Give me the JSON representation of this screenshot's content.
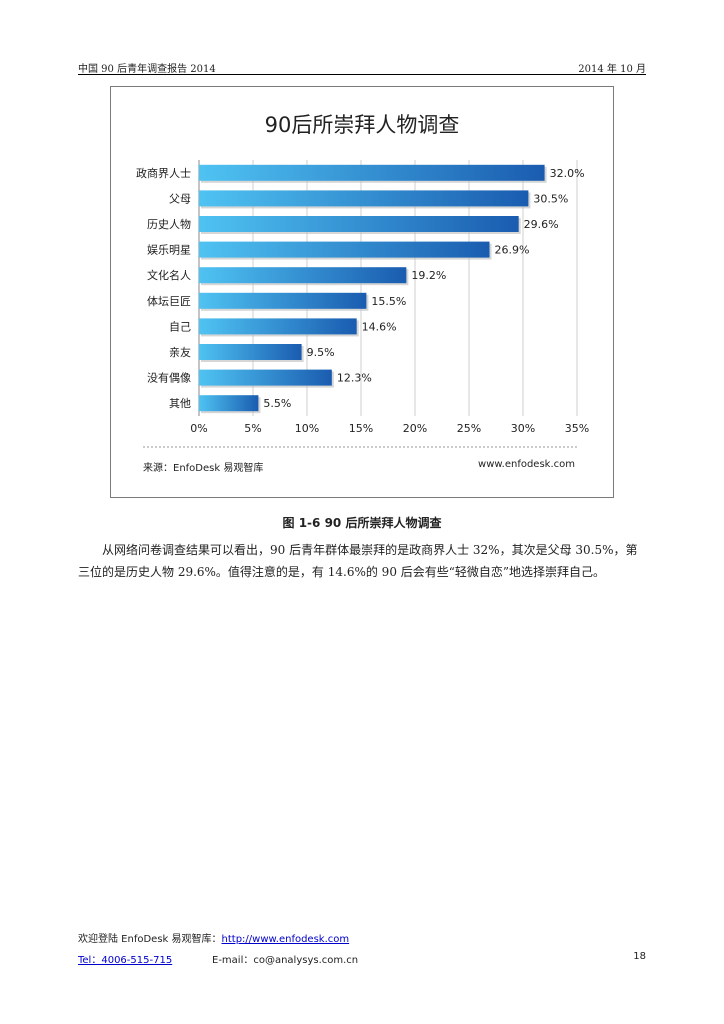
{
  "header": {
    "left": "中国 90 后青年调查报告 2014",
    "right": "2014 年 10 月"
  },
  "chart_data": {
    "type": "bar",
    "orientation": "horizontal",
    "title": "90后所崇拜人物调查",
    "categories": [
      "政商界人士",
      "父母",
      "历史人物",
      "娱乐明星",
      "文化名人",
      "体坛巨匠",
      "自己",
      "亲友",
      "没有偶像",
      "其他"
    ],
    "values": [
      32.0,
      30.5,
      29.6,
      26.9,
      19.2,
      15.5,
      14.6,
      9.5,
      12.3,
      5.5
    ],
    "value_labels": [
      "32.0%",
      "30.5%",
      "29.6%",
      "26.9%",
      "19.2%",
      "15.5%",
      "14.6%",
      "9.5%",
      "12.3%",
      "5.5%"
    ],
    "x_ticks": [
      "0%",
      "5%",
      "10%",
      "15%",
      "20%",
      "25%",
      "30%",
      "35%"
    ],
    "xlim": [
      0,
      35
    ],
    "grid": true,
    "bar_color_start": "#4fc3f2",
    "bar_color_end": "#1a5cb0",
    "source": "来源：EnfoDesk 易观智库",
    "site": "www.enfodesk.com"
  },
  "caption": "图 1-6   90 后所崇拜人物调查",
  "paragraph": "从网络问卷调查结果可以看出，90 后青年群体最崇拜的是政商界人士 32%，其次是父母 30.5%，第三位的是历史人物 29.6%。值得注意的是，有 14.6%的 90 后会有些“轻微自恋”地选择崇拜自己。",
  "footer": {
    "welcome": "欢迎登陆 EnfoDesk 易观智库：",
    "url": "http://www.enfodesk.com",
    "tel": "Tel：4006-515-715",
    "email": "E-mail：co@analysys.com.cn",
    "page": "18"
  }
}
